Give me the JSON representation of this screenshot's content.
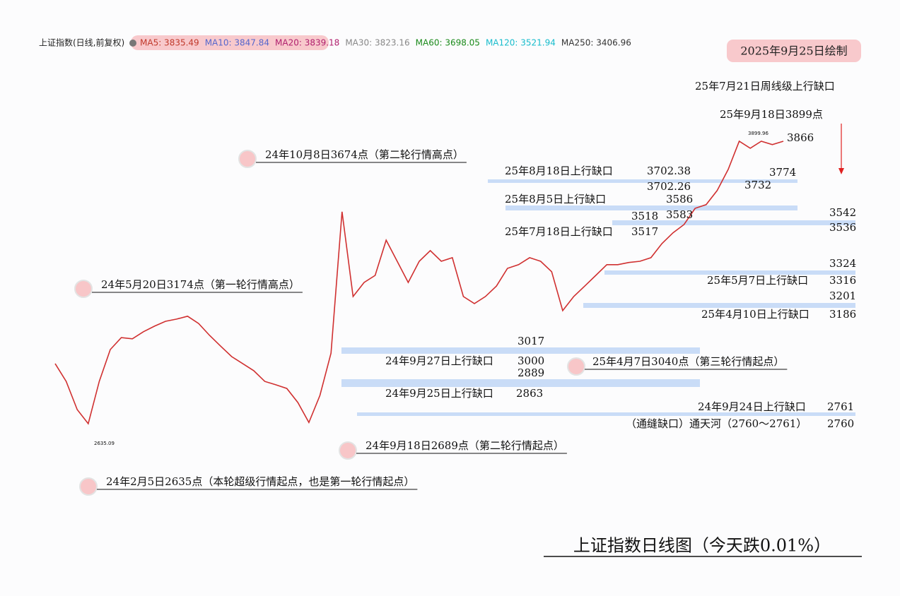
{
  "chart_data": {
    "type": "line",
    "title": "上证指数日线图（今天跌0.01%）",
    "subtitle": "2025年9月25日绘制",
    "instrument": "上证指数(日线,前复权)",
    "legend": [
      {
        "label": "MA5: 3835.49",
        "color": "#c0392b"
      },
      {
        "label": "MA10: 3847.84",
        "color": "#5566cc"
      },
      {
        "label": "MA20: 3839.18",
        "color": "#b0206e"
      },
      {
        "label": "MA30: 3823.16",
        "color": "#888888"
      },
      {
        "label": "MA60: 3698.05",
        "color": "#1a8a1a"
      },
      {
        "label": "MA120: 3521.94",
        "color": "#17bccc"
      },
      {
        "label": "MA250: 3406.96",
        "color": "#333333"
      }
    ],
    "color": "#d03030",
    "ylim": [
      2400,
      4050
    ],
    "x": [
      null,
      null,
      null,
      null,
      null,
      null,
      null,
      null,
      null,
      null,
      null,
      null,
      null,
      null,
      null,
      null,
      null,
      null,
      null,
      null,
      null,
      null,
      null,
      null,
      null,
      null,
      null,
      null,
      null,
      null,
      null,
      null,
      null,
      null,
      null,
      null,
      null,
      null,
      null,
      null,
      null,
      null,
      null,
      null,
      null,
      null,
      null,
      null,
      null,
      null,
      null,
      null,
      null,
      null,
      null,
      null,
      null,
      null,
      null,
      null,
      null,
      null,
      null,
      null,
      null,
      null,
      null
    ],
    "values": [
      2955,
      2882,
      2766,
      2708,
      2882,
      3013,
      3062,
      3057,
      3086,
      3109,
      3129,
      3138,
      3150,
      3120,
      3071,
      3027,
      2984,
      2955,
      2926,
      2882,
      2868,
      2853,
      2795,
      2713,
      2824,
      2998,
      3580,
      3231,
      3289,
      3318,
      3463,
      3376,
      3289,
      3376,
      3420,
      3376,
      3391,
      3231,
      3202,
      3231,
      3274,
      3347,
      3362,
      3391,
      3376,
      3333,
      3173,
      3231,
      3274,
      3318,
      3362,
      3362,
      3371,
      3376,
      3391,
      3449,
      3493,
      3527,
      3594,
      3609,
      3667,
      3754,
      3870,
      3841,
      3870,
      3856,
      3870
    ],
    "milestones": [
      "24年10月8日3674点（第二轮行情高点）",
      "24年5月20日3174点（第一轮行情高点）",
      "24年9月18日2689点（第二轮行情起点）",
      "24年2月5日2635点（本轮超级行情起点，也是第一轮行情起点）",
      "25年4月7日3040点（第三轮行情起点）"
    ],
    "annotations": [
      "25年7月21日周线级上行缺口",
      "25年9月18日3899点",
      "3866",
      "3774",
      "3732",
      "25年8月18日上行缺口",
      "3702.38",
      "3702.26",
      "25年8月5日上行缺口",
      "3586",
      "3583",
      "3518",
      "25年7月18日上行缺口",
      "3517",
      "3542",
      "3536",
      "3324",
      "25年5月7日上行缺口",
      "3316",
      "3201",
      "25年4月10日上行缺口",
      "3186",
      "3017",
      "24年9月27日上行缺口",
      "3000",
      "2889",
      "24年9月25日上行缺口",
      "2863",
      "24年9月24日上行缺口",
      "2761",
      "（通缝缺口）通天河（2760～2761）",
      "2760",
      "3899.96",
      "2635.09"
    ]
  }
}
